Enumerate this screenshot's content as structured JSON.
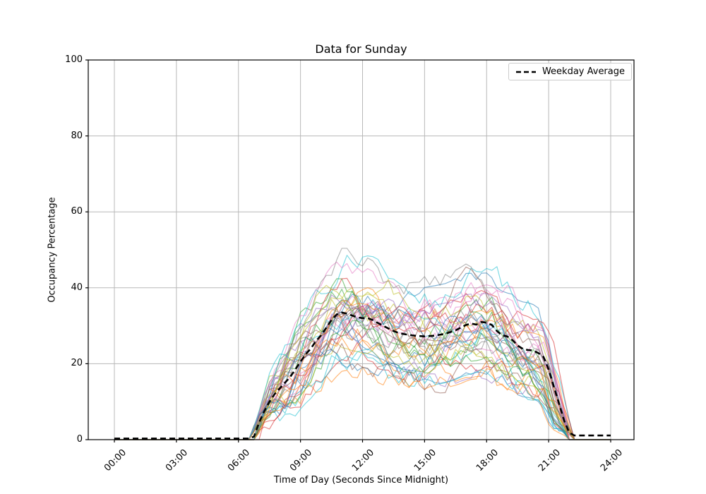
{
  "chart_data": {
    "type": "line",
    "title": "Data for Sunday",
    "xlabel": "Time of Day (Seconds Since Midnight)",
    "ylabel": "Occupancy Percentage",
    "x_ticks": [
      "00:00",
      "03:00",
      "06:00",
      "09:00",
      "12:00",
      "15:00",
      "18:00",
      "21:00",
      "24:00"
    ],
    "x_tick_hours": [
      0,
      3,
      6,
      9,
      12,
      15,
      18,
      21,
      24
    ],
    "y_ticks": [
      0,
      20,
      40,
      60,
      80,
      100
    ],
    "ylim": [
      0,
      100
    ],
    "x_range_hours": [
      0,
      24
    ],
    "grid": true,
    "legend": {
      "label": "Weekday Average",
      "position": "upper right"
    },
    "style": {
      "grid_color": "#b8b8b8",
      "spine_color": "#000000",
      "average_color": "#000000",
      "average_dash": "8 5",
      "average_width": 2.6,
      "line_width": 1.2,
      "line_alpha": 0.55
    },
    "weekday_average": {
      "x_hours": [
        0,
        6.5,
        6.75,
        7.0,
        7.25,
        7.5,
        7.75,
        8.0,
        8.25,
        8.5,
        8.75,
        9.0,
        9.25,
        9.5,
        9.75,
        10.0,
        10.25,
        10.5,
        10.75,
        11.0,
        11.25,
        11.5,
        11.75,
        12.0,
        12.25,
        12.5,
        12.75,
        13.0,
        13.25,
        13.5,
        13.75,
        14.0,
        14.5,
        15.0,
        15.5,
        16.0,
        16.5,
        16.75,
        17.0,
        17.25,
        17.5,
        17.75,
        18.0,
        18.25,
        18.5,
        18.75,
        19.0,
        19.25,
        19.5,
        19.75,
        20.0,
        20.25,
        20.5,
        20.75,
        21.0,
        21.25,
        21.5,
        21.75,
        22.0,
        22.25,
        24.0
      ],
      "values": [
        0.3,
        0.3,
        0.8,
        4.5,
        7.5,
        10.0,
        12.0,
        13.5,
        15.0,
        16.5,
        18.5,
        20.5,
        22.5,
        24.0,
        26.0,
        27.5,
        29.5,
        31.5,
        33.0,
        33.5,
        33.2,
        32.7,
        32.2,
        32.0,
        32.0,
        31.5,
        30.7,
        30.0,
        29.3,
        28.6,
        28.1,
        27.8,
        27.4,
        27.2,
        27.4,
        27.9,
        28.8,
        29.5,
        30.2,
        30.6,
        30.3,
        31.0,
        30.8,
        30.2,
        28.6,
        27.5,
        27.2,
        26.2,
        24.8,
        23.9,
        23.6,
        23.5,
        22.8,
        21.8,
        18.5,
        14.0,
        9.5,
        5.0,
        1.8,
        1.1,
        1.1
      ]
    },
    "individual_days": {
      "count": 42,
      "sample_step_hours": 0.25,
      "active_hours": [
        6.6,
        22.0
      ],
      "value_envelope": {
        "max": 53,
        "min_midday": 11
      },
      "seed": 1337,
      "palette": [
        "#1f77b4",
        "#ff7f0e",
        "#2ca02c",
        "#d62728",
        "#9467bd",
        "#8c564b",
        "#e377c2",
        "#7f7f7f",
        "#bcbd22",
        "#17becf"
      ]
    }
  }
}
